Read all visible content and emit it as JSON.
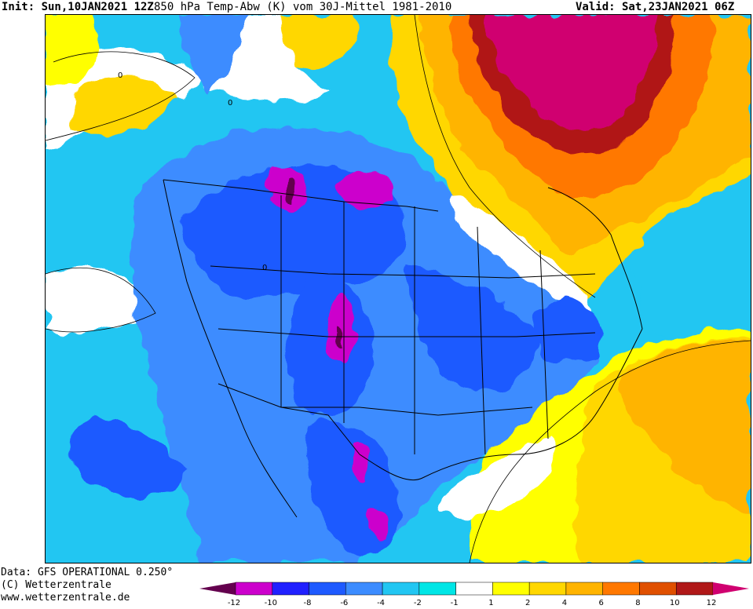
{
  "header": {
    "init": "Init: Sun,10JAN2021 12Z",
    "title": "850 hPa Temp-Abw (K) vom 30J-Mittel 1981-2010",
    "valid": "Valid: Sat,23JAN2021 06Z"
  },
  "footer": {
    "data_source": "Data: GFS OPERATIONAL 0.250°",
    "copyright": "(C) Wetterzentrale",
    "website": "www.wetterzentrale.de"
  },
  "map": {
    "region": "North America",
    "variable": "850 hPa temperature anomaly",
    "contour_labels": [
      "0",
      "0",
      "0"
    ]
  },
  "legend": {
    "ticks": [
      "-12",
      "-10",
      "-8",
      "-6",
      "-4",
      "-2",
      "-1",
      "1",
      "2",
      "4",
      "6",
      "8",
      "10",
      "12"
    ],
    "colors": [
      "#64004e",
      "#cc00cc",
      "#2020ff",
      "#1e5aff",
      "#3c8cff",
      "#22c6f2",
      "#00e6e6",
      "#ffffff",
      "#ffff00",
      "#ffd700",
      "#ffb400",
      "#ff7800",
      "#e05000",
      "#b01818",
      "#d00070"
    ]
  }
}
